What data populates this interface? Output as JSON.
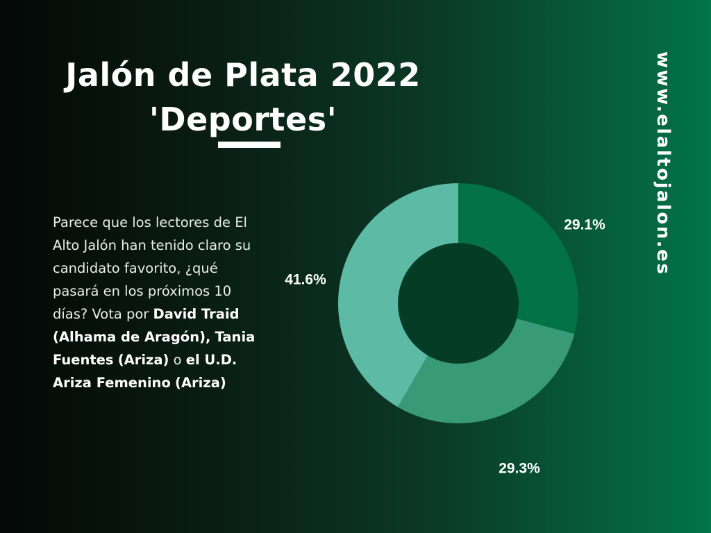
{
  "title": {
    "line1": "Jalón de Plata 2022",
    "line2": "'Deportes'"
  },
  "description": {
    "part1": "Parece que los lectores de El Alto Jalón han tenido claro su candidato favorito, ¿qué pasará en los próximos 10 días? Vota por ",
    "name1": "David Traid",
    "sep1": " ",
    "origin1": "(Alhama de Aragón),",
    "sep2": " ",
    "name2": "Tania Fuentes",
    "sep3": " ",
    "origin2": "(Ariza)",
    "conj": " o ",
    "name3": "el U.D. Ariza Femenino",
    "sep4": " ",
    "origin3": "(Ariza)"
  },
  "site_url": "www.elaltojalon.es",
  "chart_data": {
    "type": "pie",
    "variant": "donut",
    "title": "",
    "start_angle_deg": 0,
    "direction": "clockwise",
    "slices": [
      {
        "label": "29.1%",
        "value": 29.1,
        "color": "#037244"
      },
      {
        "label": "29.3%",
        "value": 29.3,
        "color": "#389a76"
      },
      {
        "label": "41.6%",
        "value": 41.6,
        "color": "#5dbba5"
      }
    ],
    "hole_color": "#053c25",
    "legend": "none"
  },
  "colors": {
    "background_left": "#040806",
    "background_right": "#02744a",
    "text": "#ffffff"
  }
}
